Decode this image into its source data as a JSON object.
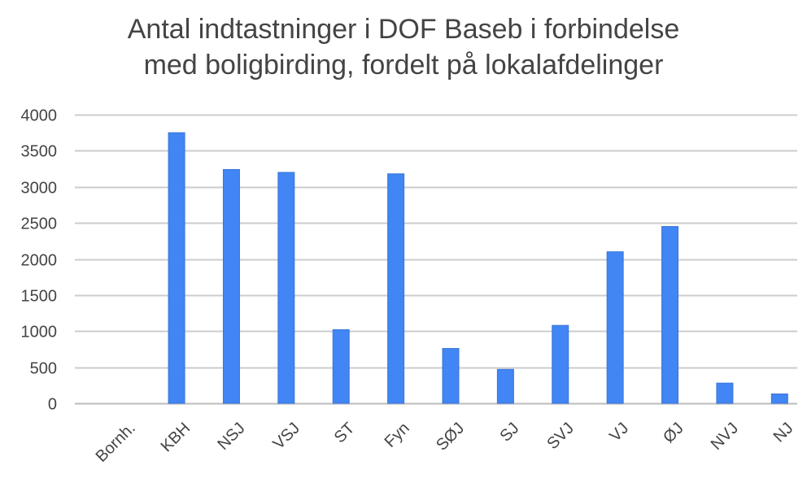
{
  "chart_data": {
    "type": "bar",
    "title_lines": [
      "Antal indtastninger i DOF Baseb i forbindelse",
      "med boligbirding, fordelt på lokalafdelinger"
    ],
    "categories": [
      "Bornh.",
      "KBH",
      "NSJ",
      "VSJ",
      "ST",
      "Fyn",
      "SØJ",
      "SJ",
      "SVJ",
      "VJ",
      "ØJ",
      "NVJ",
      "NJ"
    ],
    "values": [
      0,
      3750,
      3240,
      3200,
      1020,
      3180,
      760,
      470,
      1080,
      2100,
      2450,
      280,
      130
    ],
    "ylim": [
      0,
      4000
    ],
    "yticks": [
      0,
      500,
      1000,
      1500,
      2000,
      2500,
      3000,
      3500,
      4000
    ],
    "grid": true,
    "xlabel": "",
    "ylabel": "",
    "legend": "none",
    "colors": {
      "bar": "#4285f4",
      "bar_edge": "#3a76d8",
      "grid": "#cccccc",
      "text": "#444444"
    }
  }
}
